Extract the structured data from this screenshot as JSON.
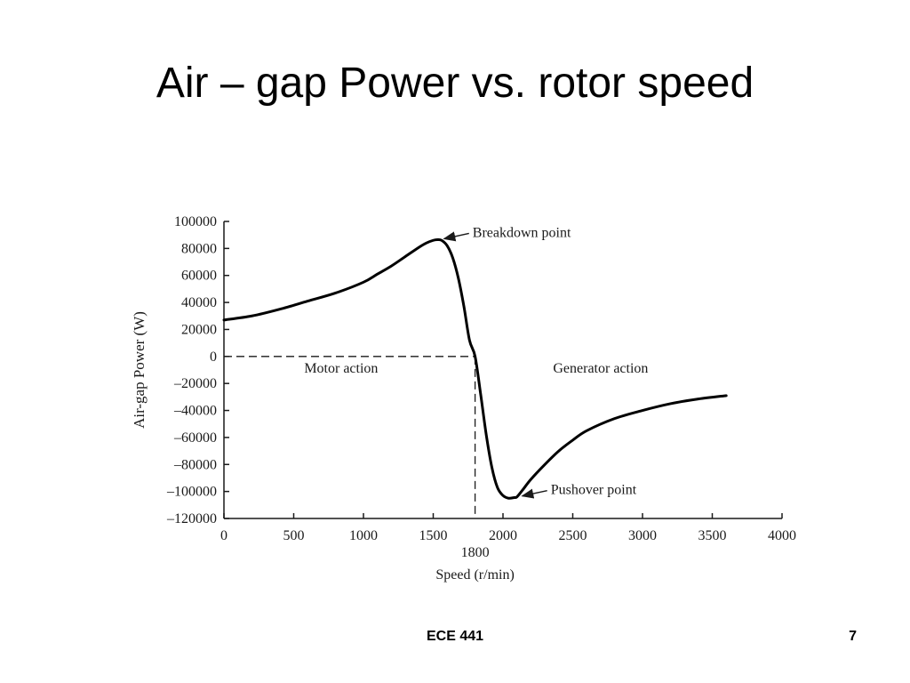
{
  "slide": {
    "title": "Air – gap Power vs. rotor speed",
    "footer_course": "ECE 441",
    "footer_page": "7"
  },
  "chart_data": {
    "type": "line",
    "xlabel": "Speed (r/min)",
    "ylabel": "Air-gap Power (W)",
    "xlim": [
      0,
      4000
    ],
    "ylim": [
      -120000,
      100000
    ],
    "x_ticks": [
      {
        "value": 0,
        "label": "0"
      },
      {
        "value": 500,
        "label": "500"
      },
      {
        "value": 1000,
        "label": "1000"
      },
      {
        "value": 1500,
        "label": "1500"
      },
      {
        "value": 2000,
        "label": "2000"
      },
      {
        "value": 2500,
        "label": "2500"
      },
      {
        "value": 3000,
        "label": "3000"
      },
      {
        "value": 3500,
        "label": "3500"
      },
      {
        "value": 4000,
        "label": "4000"
      }
    ],
    "y_ticks": [
      {
        "value": 100000,
        "label": "100000"
      },
      {
        "value": 80000,
        "label": "80000"
      },
      {
        "value": 60000,
        "label": "60000"
      },
      {
        "value": 40000,
        "label": "40000"
      },
      {
        "value": 20000,
        "label": "20000"
      },
      {
        "value": 0,
        "label": "0"
      },
      {
        "value": -20000,
        "label": "–20000"
      },
      {
        "value": -40000,
        "label": "–40000"
      },
      {
        "value": -60000,
        "label": "–60000"
      },
      {
        "value": -80000,
        "label": "–80000"
      },
      {
        "value": -100000,
        "label": "–100000"
      },
      {
        "value": -120000,
        "label": "–120000"
      }
    ],
    "extra_x_label": {
      "value": 1800,
      "label": "1800"
    },
    "grid": false,
    "series": [
      {
        "x": [
          0,
          200,
          400,
          600,
          800,
          1000,
          1100,
          1200,
          1300,
          1400,
          1450,
          1500,
          1530,
          1560,
          1600,
          1640,
          1680,
          1720,
          1760,
          1800,
          1840,
          1880,
          1920,
          1960,
          2000,
          2040,
          2080,
          2100,
          2140,
          2200,
          2300,
          2400,
          2500,
          2600,
          2800,
          3000,
          3200,
          3400,
          3600
        ],
        "y": [
          27000,
          30000,
          35000,
          41000,
          47000,
          55000,
          61000,
          67000,
          74000,
          81000,
          84000,
          86000,
          86500,
          86000,
          82000,
          73000,
          58000,
          37000,
          12000,
          0,
          -28000,
          -58000,
          -82000,
          -97000,
          -103000,
          -105000,
          -104500,
          -104000,
          -99000,
          -91000,
          -80000,
          -70000,
          -62000,
          -55000,
          -46000,
          -40000,
          -35000,
          -31500,
          -29000
        ]
      }
    ],
    "guides": {
      "hline_y": 0,
      "vline_x": 1800
    },
    "annotations": [
      {
        "text": "Breakdown point",
        "x": 1540,
        "y": 86500,
        "arrow": true
      },
      {
        "text": "Pushover point",
        "x": 2100,
        "y": -104000,
        "arrow": true
      },
      {
        "text": "Motor action",
        "x": 840,
        "y": -12000,
        "arrow": false
      },
      {
        "text": "Generator action",
        "x": 2700,
        "y": -12000,
        "arrow": false
      }
    ]
  }
}
